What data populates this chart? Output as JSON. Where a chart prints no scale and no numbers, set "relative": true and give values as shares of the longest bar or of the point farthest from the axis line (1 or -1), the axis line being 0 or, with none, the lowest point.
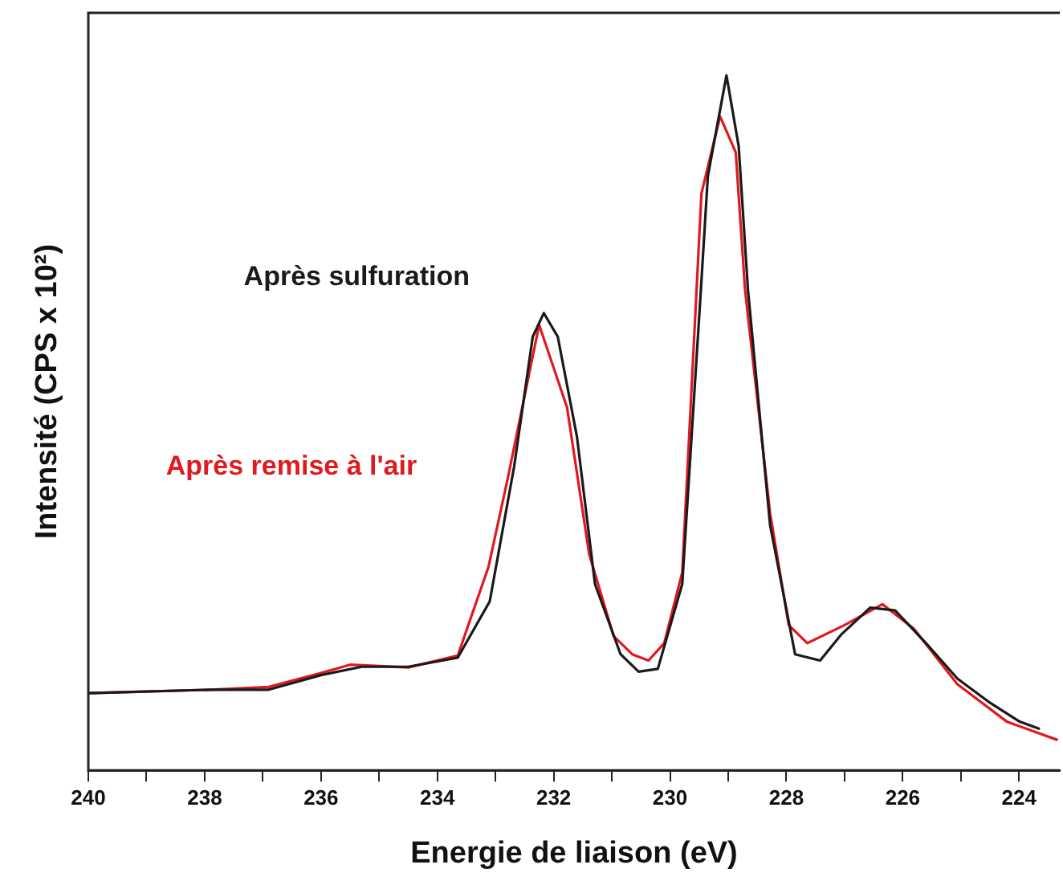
{
  "chart_data": {
    "type": "line",
    "xlabel": "Energie de liaison (eV)",
    "ylabel": "Intensité (CPS x 10²)",
    "relative": true,
    "grid": false,
    "legend": false,
    "marker": "none",
    "line_style": "solid",
    "xlim": [
      240,
      223.3
    ],
    "xticks": [
      240,
      {
        "value": 239,
        "label": null
      },
      238,
      {
        "value": 237,
        "label": null
      },
      236,
      {
        "value": 235,
        "label": null
      },
      234,
      {
        "value": 233,
        "label": null
      },
      232,
      {
        "value": 231,
        "label": null
      },
      230,
      {
        "value": 229,
        "label": null
      },
      228,
      {
        "value": 227,
        "label": null
      },
      226,
      {
        "value": 225,
        "label": null
      },
      224
    ],
    "series": [
      {
        "name": "Après sulfuration",
        "color": "#1a1a1a",
        "x": [
          240,
          237.9,
          236.9,
          236.0,
          235.3,
          234.5,
          233.65,
          233.1,
          232.68,
          232.36,
          232.17,
          231.93,
          231.6,
          231.29,
          230.85,
          230.54,
          230.21,
          229.79,
          229.47,
          229.35,
          229.03,
          228.82,
          228.66,
          228.28,
          227.85,
          227.42,
          227.05,
          226.56,
          226.13,
          225.6,
          225.06,
          224.53,
          223.99,
          223.66
        ],
        "values": [
          0.111,
          0.116,
          0.116,
          0.137,
          0.149,
          0.149,
          0.162,
          0.243,
          0.437,
          0.624,
          0.658,
          0.624,
          0.48,
          0.268,
          0.167,
          0.142,
          0.146,
          0.268,
          0.691,
          0.855,
          1,
          0.898,
          0.691,
          0.353,
          0.167,
          0.158,
          0.196,
          0.234,
          0.23,
          0.183,
          0.132,
          0.099,
          0.07,
          0.06
        ]
      },
      {
        "name": "Après remise à l'air",
        "color": "#e0191e",
        "x": [
          240,
          237.9,
          236.9,
          236.0,
          235.5,
          234.5,
          233.65,
          233.12,
          232.79,
          232.25,
          231.77,
          231.39,
          230.97,
          230.65,
          230.37,
          230.1,
          229.79,
          229.46,
          229.14,
          228.87,
          228.71,
          228.28,
          227.96,
          227.64,
          227.0,
          226.35,
          225.81,
          225.06,
          224.21,
          223.35
        ],
        "values": [
          0.111,
          0.116,
          0.12,
          0.14,
          0.152,
          0.148,
          0.165,
          0.293,
          0.42,
          0.641,
          0.522,
          0.311,
          0.193,
          0.167,
          0.158,
          0.183,
          0.285,
          0.83,
          0.941,
          0.889,
          0.691,
          0.37,
          0.209,
          0.183,
          0.209,
          0.239,
          0.204,
          0.124,
          0.07,
          0.044
        ]
      }
    ]
  }
}
